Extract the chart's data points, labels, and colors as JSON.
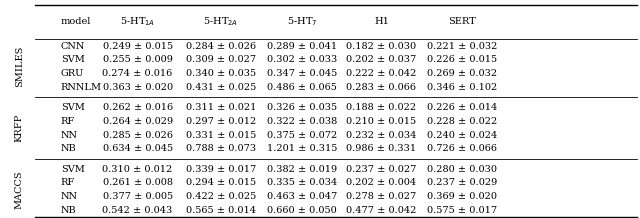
{
  "col_headers": [
    "model",
    "5-HT$_{1A}$",
    "5-HT$_{2A}$",
    "5-HT$_{7}$",
    "H1",
    "SERT"
  ],
  "groups": [
    {
      "label": "SMILES",
      "rows": [
        [
          "CNN",
          "0.249 ± 0.015",
          "0.284 ± 0.026",
          "0.289 ± 0.041",
          "0.182 ± 0.030",
          "0.221 ± 0.032"
        ],
        [
          "SVM",
          "0.255 ± 0.009",
          "0.309 ± 0.027",
          "0.302 ± 0.033",
          "0.202 ± 0.037",
          "0.226 ± 0.015"
        ],
        [
          "GRU",
          "0.274 ± 0.016",
          "0.340 ± 0.035",
          "0.347 ± 0.045",
          "0.222 ± 0.042",
          "0.269 ± 0.032"
        ],
        [
          "RNNLM",
          "0.363 ± 0.020",
          "0.431 ± 0.025",
          "0.486 ± 0.065",
          "0.283 ± 0.066",
          "0.346 ± 0.102"
        ]
      ]
    },
    {
      "label": "KRFP",
      "rows": [
        [
          "SVM",
          "0.262 ± 0.016",
          "0.311 ± 0.021",
          "0.326 ± 0.035",
          "0.188 ± 0.022",
          "0.226 ± 0.014"
        ],
        [
          "RF",
          "0.264 ± 0.029",
          "0.297 ± 0.012",
          "0.322 ± 0.038",
          "0.210 ± 0.015",
          "0.228 ± 0.022"
        ],
        [
          "NN",
          "0.285 ± 0.026",
          "0.331 ± 0.015",
          "0.375 ± 0.072",
          "0.232 ± 0.034",
          "0.240 ± 0.024"
        ],
        [
          "NB",
          "0.634 ± 0.045",
          "0.788 ± 0.073",
          "1.201 ± 0.315",
          "0.986 ± 0.331",
          "0.726 ± 0.066"
        ]
      ]
    },
    {
      "label": "MACCS",
      "rows": [
        [
          "SVM",
          "0.310 ± 0.012",
          "0.339 ± 0.017",
          "0.382 ± 0.019",
          "0.237 ± 0.027",
          "0.280 ± 0.030"
        ],
        [
          "RF",
          "0.261 ± 0.008",
          "0.294 ± 0.015",
          "0.335 ± 0.034",
          "0.202 ± 0.004",
          "0.237 ± 0.029"
        ],
        [
          "NN",
          "0.377 ± 0.005",
          "0.422 ± 0.025",
          "0.463 ± 0.047",
          "0.278 ± 0.027",
          "0.369 ± 0.020"
        ],
        [
          "NB",
          "0.542 ± 0.043",
          "0.565 ± 0.014",
          "0.660 ± 0.050",
          "0.477 ± 0.042",
          "0.575 ± 0.017"
        ]
      ]
    }
  ],
  "figsize": [
    6.4,
    2.18
  ],
  "dpi": 100,
  "fontsize": 7.0,
  "background_color": "#ffffff"
}
